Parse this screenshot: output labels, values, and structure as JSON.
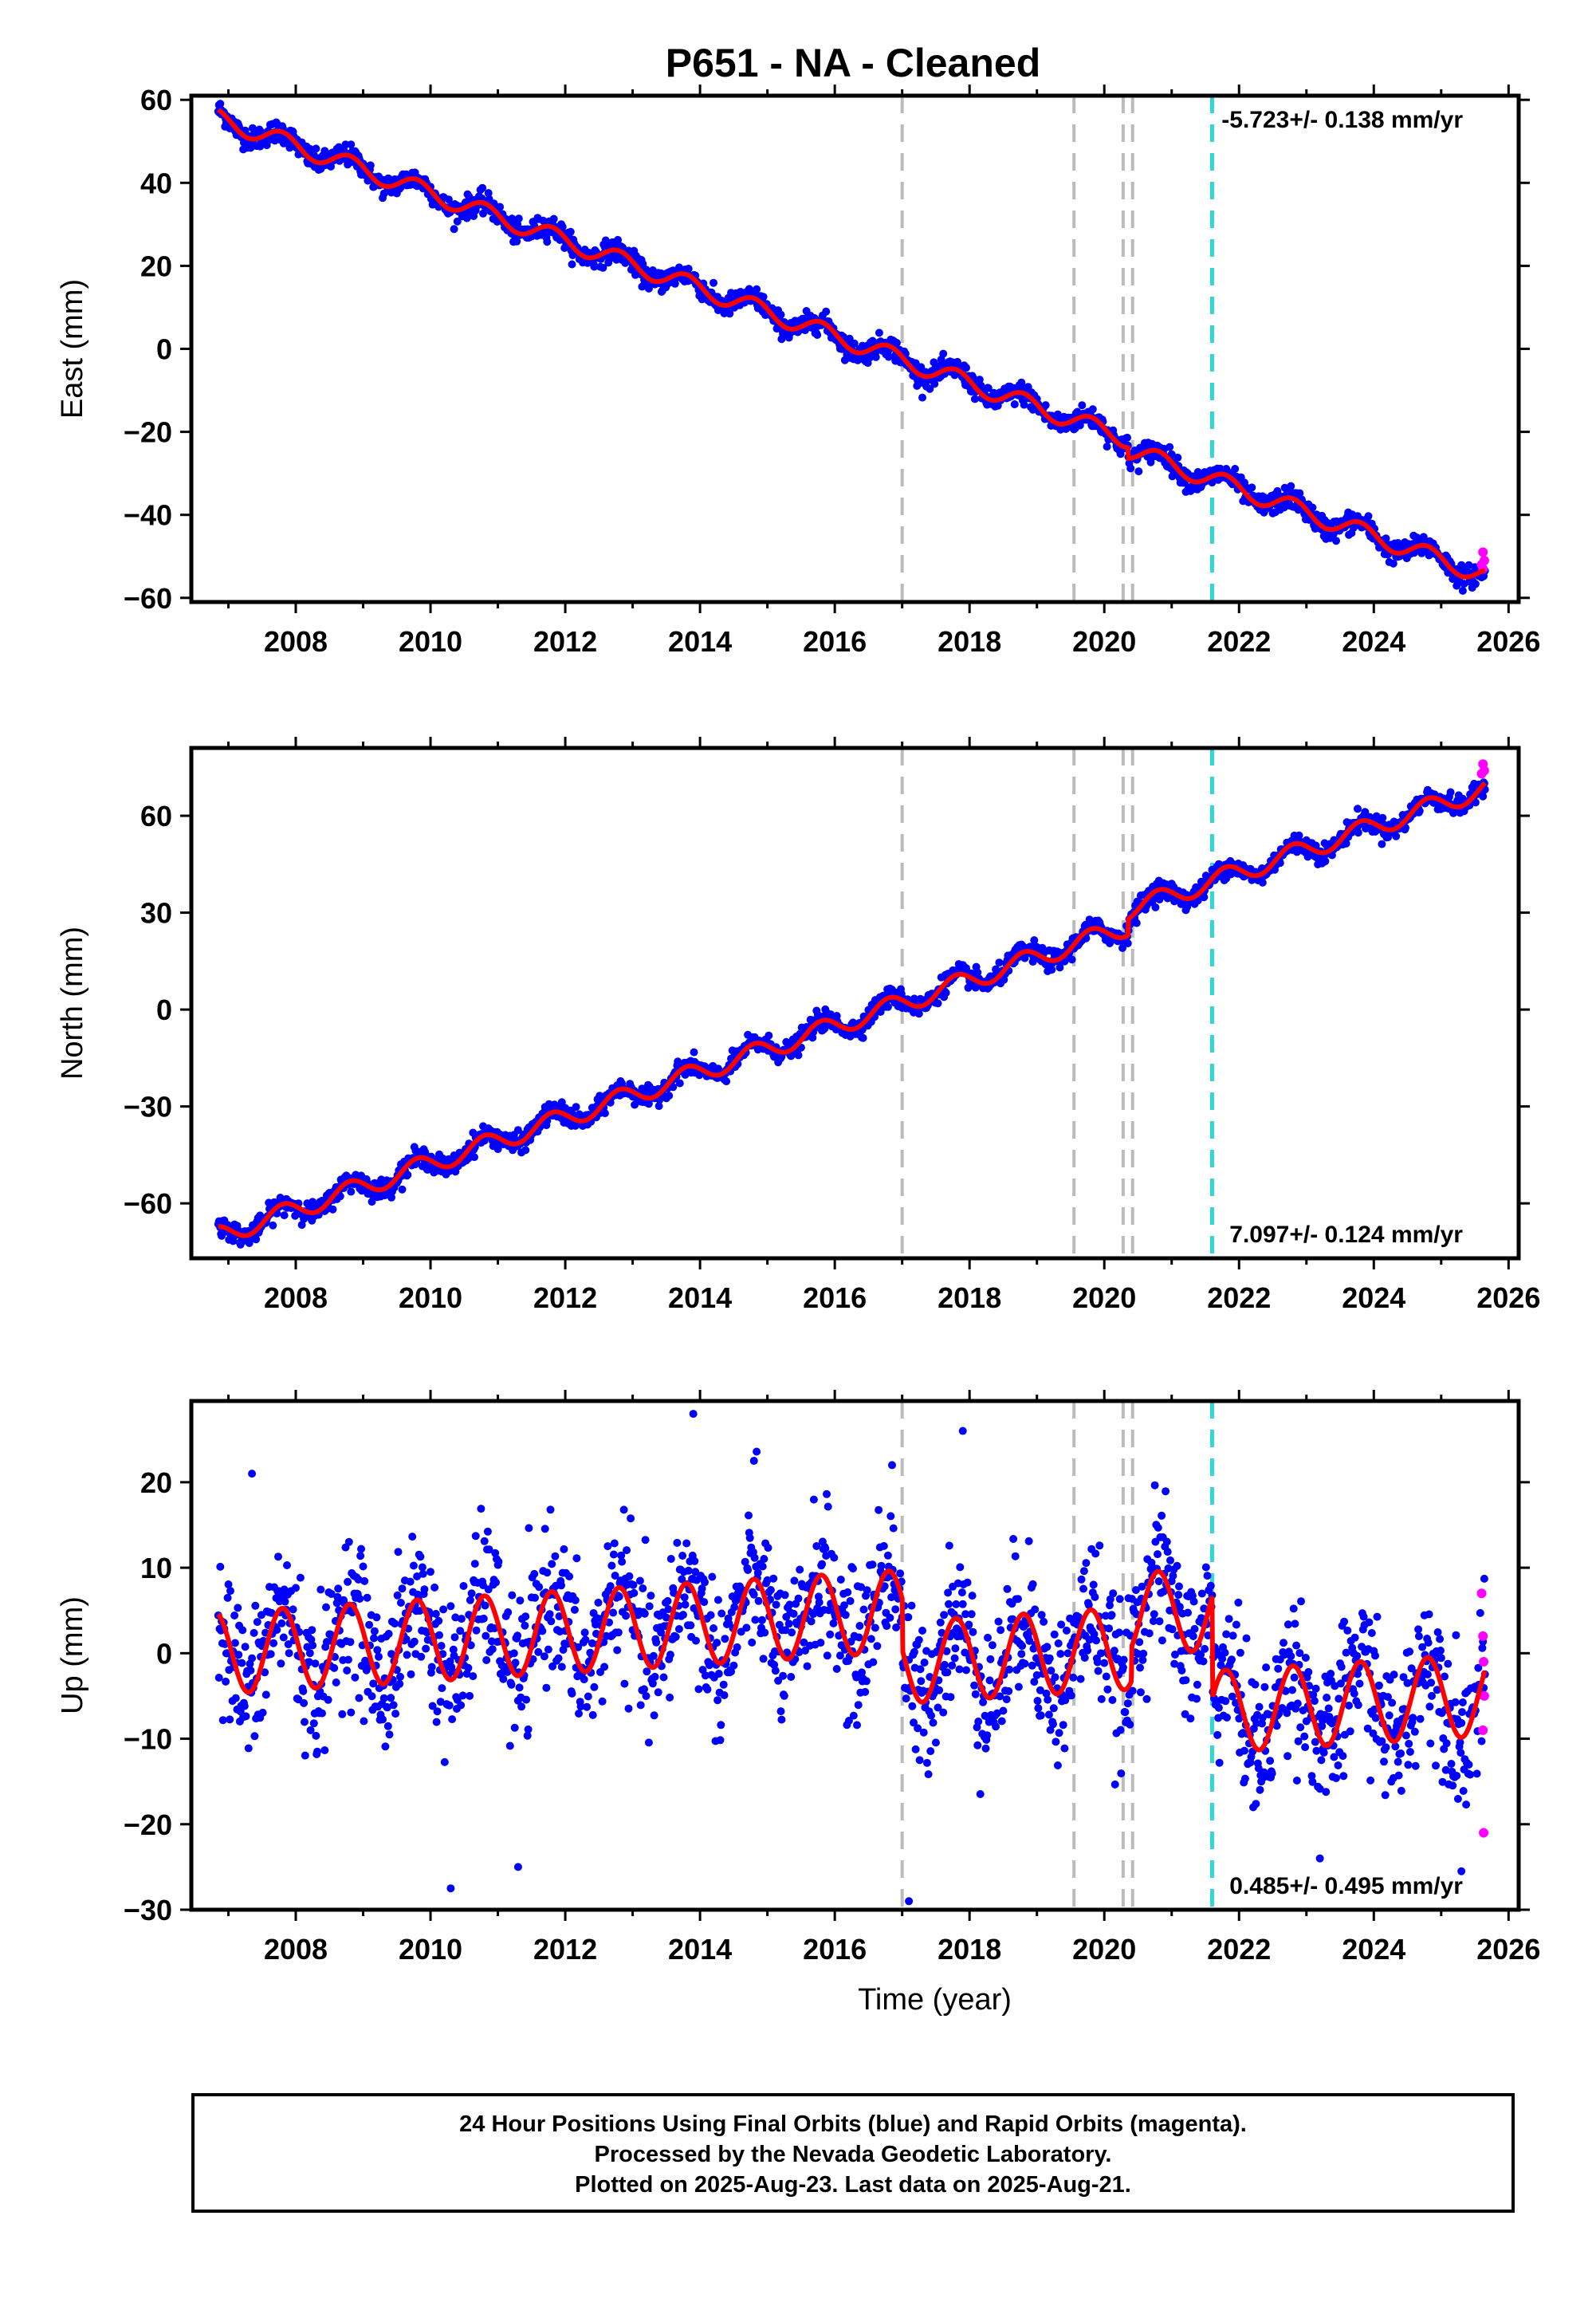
{
  "chart_data": {
    "title": "P651  - NA - Cleaned",
    "xlabel": "Time (year)",
    "xlim": [
      2006.45,
      2026.15
    ],
    "xticks": [
      2008,
      2010,
      2012,
      2014,
      2016,
      2018,
      2020,
      2022,
      2024,
      2026
    ],
    "colors": {
      "final": "#0000ff",
      "rapid": "#ff00ff",
      "model": "#ff0000",
      "gray_lines": "#bbbbbb",
      "cyan_line": "#33d6d6"
    },
    "vertical_lines": {
      "gray": [
        2017.0,
        2019.55,
        2020.28,
        2020.42
      ],
      "cyan": [
        2021.6
      ]
    },
    "charts": [
      {
        "type": "scatter",
        "component": "east",
        "ylabel": "East (mm)",
        "ylim": [
          -61,
          61
        ],
        "yticks": [
          -60,
          -40,
          -20,
          0,
          20,
          40,
          60
        ],
        "rate_text": "-5.723+/- 0.138 mm/yr",
        "rate_position": "top-right",
        "model": {
          "start_year": 2006.85,
          "end_year": 2025.65,
          "start_value": 55.5,
          "rate": -5.723,
          "seasonal_amplitude": 2.2,
          "seasonal_phase_year": 0.55,
          "noise_mm": 1.3
        },
        "steps": [
          {
            "year": 2020.35,
            "offset": -2.5
          }
        ],
        "rapid_points": [
          {
            "x": 2025.6,
            "y": -52
          },
          {
            "x": 2025.62,
            "y": -49
          },
          {
            "x": 2025.64,
            "y": -51
          },
          {
            "x": 2025.62,
            "y": -53
          }
        ]
      },
      {
        "type": "scatter",
        "component": "north",
        "ylabel": "North (mm)",
        "ylim": [
          -77,
          81
        ],
        "yticks": [
          -60,
          -30,
          0,
          30,
          60
        ],
        "rate_text": "7.097+/- 0.124 mm/yr",
        "rate_position": "bottom-right",
        "model": {
          "start_year": 2006.85,
          "end_year": 2025.65,
          "start_value": -70,
          "rate": 7.097,
          "seasonal_amplitude": 3.0,
          "seasonal_phase_year": 0.55,
          "noise_mm": 1.5
        },
        "steps": [
          {
            "year": 2020.35,
            "offset": 5
          }
        ],
        "rapid_points": [
          {
            "x": 2025.6,
            "y": 73
          },
          {
            "x": 2025.62,
            "y": 76
          },
          {
            "x": 2025.64,
            "y": 74
          }
        ]
      },
      {
        "type": "scatter",
        "component": "up",
        "ylabel": "Up (mm)",
        "ylim": [
          -30,
          29.5
        ],
        "yticks": [
          -30,
          -20,
          -10,
          0,
          10,
          20
        ],
        "rate_text": "0.485+/- 0.495 mm/yr",
        "rate_position": "bottom-right",
        "model": {
          "start_year": 2006.85,
          "end_year": 2025.65,
          "start_value": 0,
          "rate": 0.485,
          "seasonal_amplitude": 4.8,
          "seasonal_phase_year": 0.55,
          "noise_mm": 4.2
        },
        "steps": [
          {
            "year": 2017.0,
            "offset": -6
          },
          {
            "year": 2020.4,
            "offset": 4
          },
          {
            "year": 2021.6,
            "offset": -12
          }
        ],
        "outliers": [
          {
            "x": 2013.9,
            "y": 28
          },
          {
            "x": 2017.9,
            "y": 26
          },
          {
            "x": 2010.3,
            "y": -27.5
          },
          {
            "x": 2017.1,
            "y": -29
          },
          {
            "x": 2007.35,
            "y": 21
          },
          {
            "x": 2014.8,
            "y": 22.5
          },
          {
            "x": 2016.85,
            "y": 22
          },
          {
            "x": 2011.3,
            "y": -25
          },
          {
            "x": 2023.2,
            "y": -24
          },
          {
            "x": 2025.3,
            "y": -25.5
          }
        ],
        "rapid_points": [
          {
            "x": 2025.6,
            "y": 7
          },
          {
            "x": 2025.62,
            "y": 2
          },
          {
            "x": 2025.63,
            "y": -1
          },
          {
            "x": 2025.64,
            "y": -5
          },
          {
            "x": 2025.62,
            "y": -9
          },
          {
            "x": 2025.63,
            "y": -21
          }
        ]
      }
    ]
  },
  "footer": {
    "line1": "24 Hour Positions Using Final Orbits (blue) and Rapid Orbits (magenta).",
    "line2": "Processed by the Nevada Geodetic Laboratory.",
    "line3": "Plotted on 2025-Aug-23. Last data on 2025-Aug-21."
  }
}
